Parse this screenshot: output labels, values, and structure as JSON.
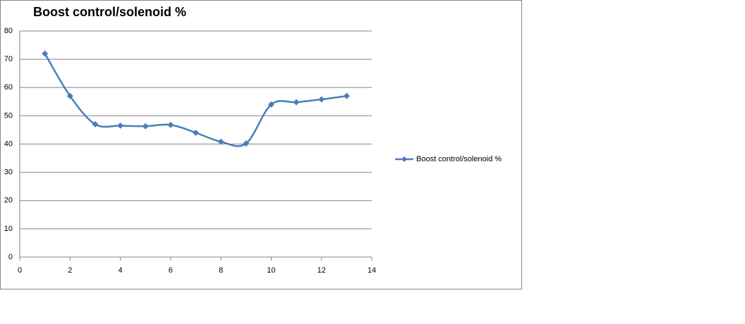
{
  "chart_data": {
    "type": "line",
    "title": "Boost control/solenoid %",
    "x": [
      1,
      2,
      3,
      4,
      5,
      6,
      7,
      8,
      9,
      10,
      11,
      12,
      13
    ],
    "series": [
      {
        "name": "Boost control/solenoid %",
        "color": "#4a7ebb",
        "values": [
          72,
          57,
          47,
          46.5,
          46.3,
          46.8,
          44,
          40.8,
          40.2,
          54,
          54.8,
          55.8,
          57
        ]
      }
    ],
    "xlim": [
      0,
      14
    ],
    "xticks": [
      0,
      2,
      4,
      6,
      8,
      10,
      12,
      14
    ],
    "ylim": [
      0,
      80
    ],
    "yticks": [
      0,
      10,
      20,
      30,
      40,
      50,
      60,
      70,
      80
    ],
    "grid": true,
    "smooth": true,
    "legend": "right"
  }
}
